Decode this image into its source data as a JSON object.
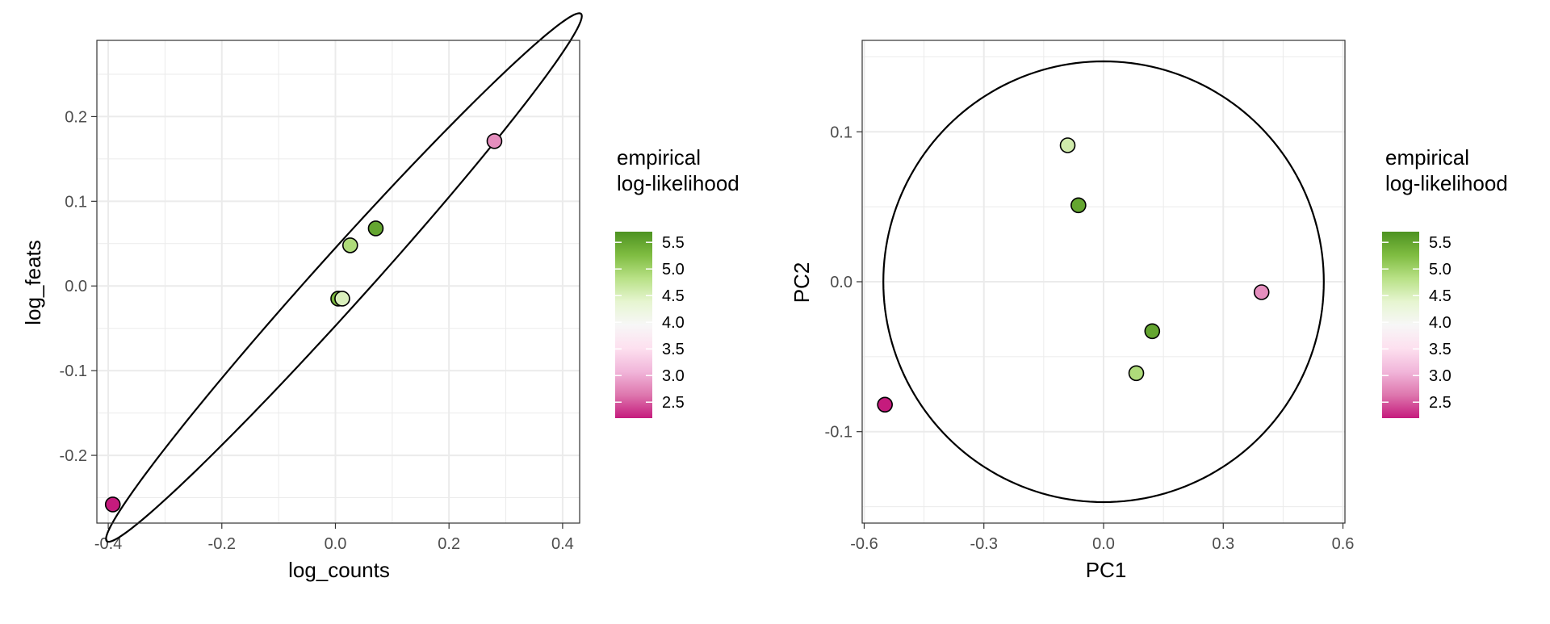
{
  "colors": {
    "low": "#c51b7d",
    "mid": "#f7f7f7",
    "high": "#4d9221",
    "stops": [
      "#c51b7d",
      "#de77ae",
      "#f1b6da",
      "#fde0ef",
      "#f7f7f7",
      "#e6f5d0",
      "#b8e186",
      "#7fbc41",
      "#4d9221"
    ]
  },
  "chart_data": [
    {
      "type": "scatter",
      "title": "",
      "xlabel": "log_counts",
      "ylabel": "log_feats",
      "xlim": [
        -0.42,
        0.43
      ],
      "ylim": [
        -0.28,
        0.29
      ],
      "xticks": [
        -0.4,
        -0.2,
        0.0,
        0.2,
        0.4
      ],
      "xtick_labels": [
        "-0.4",
        "-0.2",
        "0.0",
        "0.2",
        "0.4"
      ],
      "yticks": [
        -0.2,
        -0.1,
        0.0,
        0.1,
        0.2
      ],
      "ytick_labels": [
        "-0.2",
        "-0.1",
        "0.0",
        "0.1",
        "0.2"
      ],
      "points": [
        {
          "x": -0.392,
          "y": -0.258,
          "ll": 2.2
        },
        {
          "x": 0.28,
          "y": 0.171,
          "ll": 2.8
        },
        {
          "x": 0.026,
          "y": 0.048,
          "ll": 4.9
        },
        {
          "x": 0.071,
          "y": 0.068,
          "ll": 5.5
        },
        {
          "x": 0.005,
          "y": -0.015,
          "ll": 5.3
        },
        {
          "x": 0.012,
          "y": -0.015,
          "ll": 4.5
        }
      ],
      "ellipse": {
        "center": [
          0.015,
          0.01
        ],
        "radius_a": 0.521,
        "radius_b": 0.037,
        "angle_deg": 36.6
      },
      "legend": {
        "title": [
          "empirical",
          "log-likelihood"
        ],
        "position": "right",
        "min": 2.2,
        "max": 5.7,
        "ticks": [
          2.5,
          3.0,
          3.5,
          4.0,
          4.5,
          5.0,
          5.5
        ],
        "tick_labels": [
          "2.5",
          "3.0",
          "3.5",
          "4.0",
          "4.5",
          "5.0",
          "5.5"
        ]
      }
    },
    {
      "type": "scatter",
      "title": "",
      "xlabel": "PC1",
      "ylabel": "PC2",
      "xlim": [
        -0.605,
        0.605
      ],
      "ylim": [
        -0.161,
        0.161
      ],
      "xticks": [
        -0.6,
        -0.3,
        0.0,
        0.3,
        0.6
      ],
      "xtick_labels": [
        "-0.6",
        "-0.3",
        "0.0",
        "0.3",
        "0.6"
      ],
      "yticks": [
        -0.1,
        0.0,
        0.1
      ],
      "ytick_labels": [
        "-0.1",
        "0.0",
        "0.1"
      ],
      "points": [
        {
          "x": -0.548,
          "y": -0.082,
          "ll": 2.2
        },
        {
          "x": 0.396,
          "y": -0.007,
          "ll": 2.8
        },
        {
          "x": -0.09,
          "y": 0.091,
          "ll": 4.6
        },
        {
          "x": -0.063,
          "y": 0.051,
          "ll": 5.5
        },
        {
          "x": 0.122,
          "y": -0.033,
          "ll": 5.5
        },
        {
          "x": 0.082,
          "y": -0.061,
          "ll": 4.9
        }
      ],
      "ellipse": {
        "center": [
          0.0,
          0.0
        ],
        "radius_a": 0.552,
        "radius_b": 0.147,
        "angle_deg": 0
      },
      "legend": {
        "title": [
          "empirical",
          "log-likelihood"
        ],
        "position": "right",
        "min": 2.2,
        "max": 5.7,
        "ticks": [
          2.5,
          3.0,
          3.5,
          4.0,
          4.5,
          5.0,
          5.5
        ],
        "tick_labels": [
          "2.5",
          "3.0",
          "3.5",
          "4.0",
          "4.5",
          "5.0",
          "5.5"
        ]
      }
    }
  ]
}
